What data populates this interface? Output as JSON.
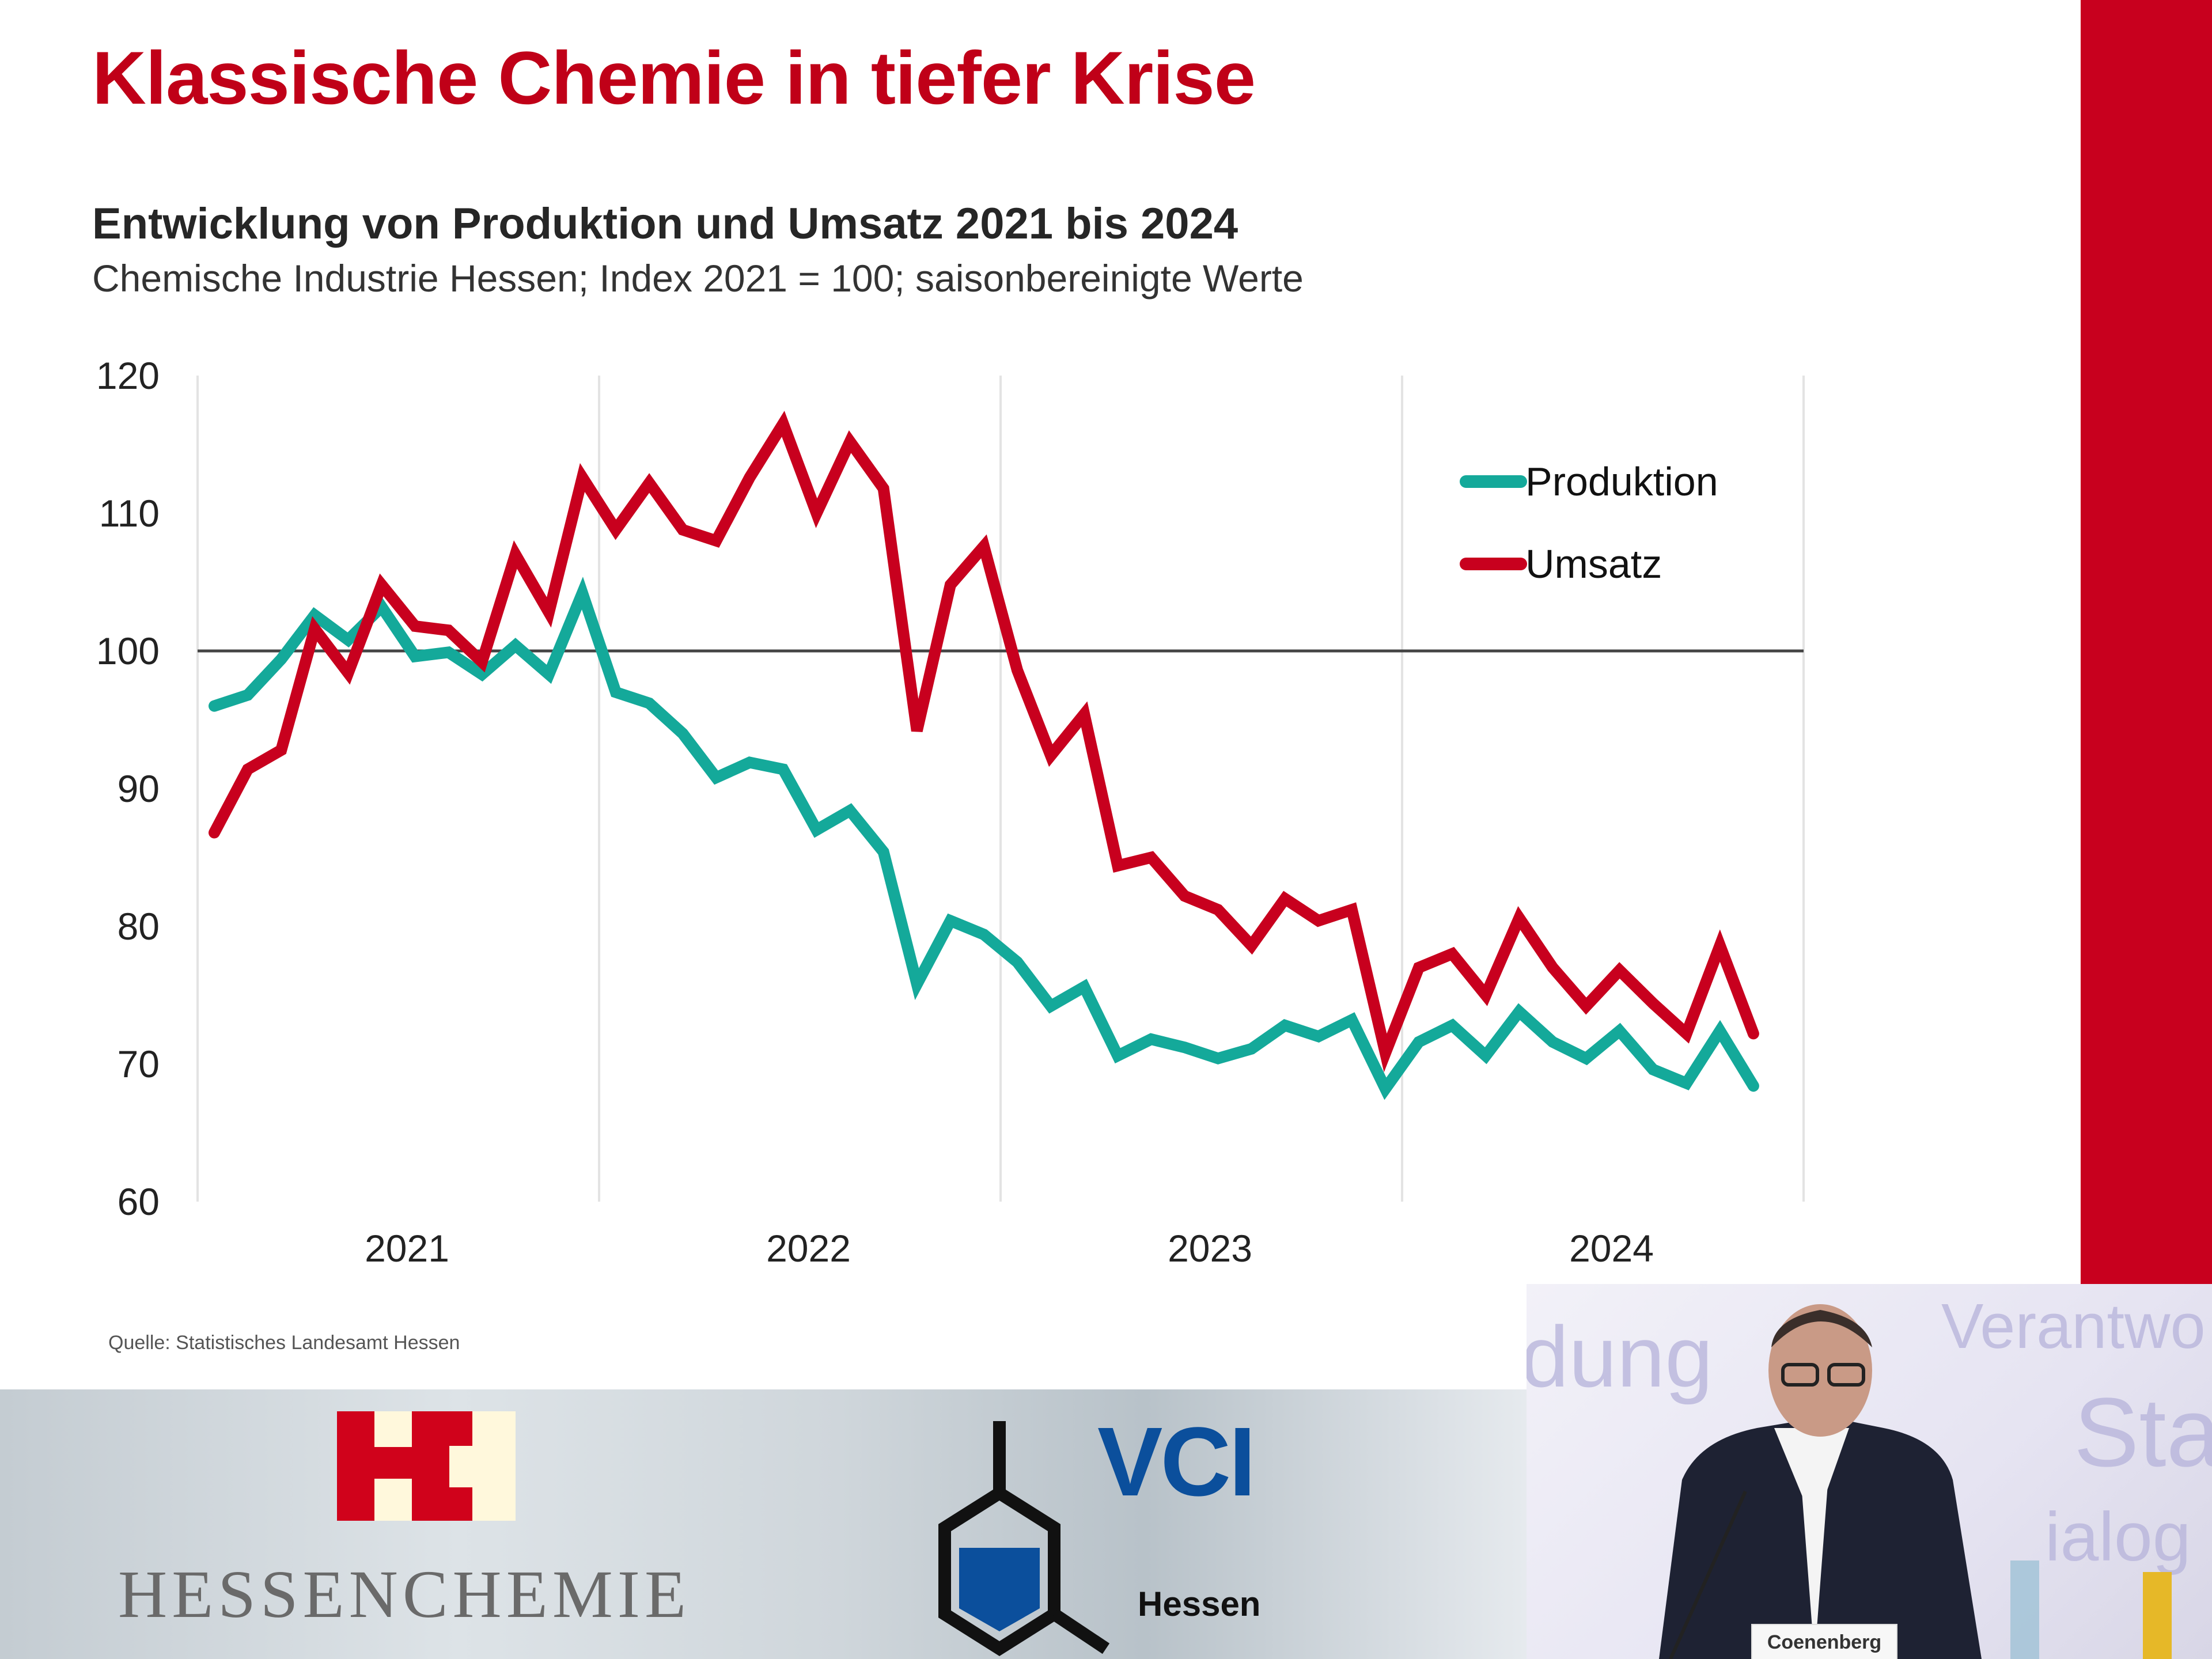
{
  "slide": {
    "title": "Klassische Chemie in tiefer Krise",
    "source": "Quelle: Statistisches Landesamt Hessen",
    "accent_color": "#c00018"
  },
  "chart_data": {
    "type": "line",
    "title": "Entwicklung von Produktion und Umsatz 2021 bis 2024",
    "subtitle": "Chemische Industrie Hessen; Index 2021 = 100; saisonbereinigte Werte",
    "xlabel": "",
    "ylabel": "",
    "ylim": [
      60,
      120
    ],
    "yticks": [
      "60",
      "70",
      "80",
      "90",
      "100",
      "110",
      "120"
    ],
    "xticks": [
      "2021",
      "2022",
      "2023",
      "2024"
    ],
    "x_frequency": "monthly, Jan 2021 – Nov 2024",
    "reference_line": 100,
    "grid": "vertical year separators",
    "legend_position": "top-right",
    "series": [
      {
        "name": "Produktion",
        "color": "#14a99a",
        "values": [
          96,
          96.8,
          99.4,
          102.6,
          100.8,
          103.2,
          99.6,
          99.9,
          98.3,
          100.4,
          98.3,
          104.2,
          97,
          96.2,
          94,
          90.8,
          91.9,
          91.4,
          87,
          88.4,
          85.4,
          75.8,
          80.4,
          79.4,
          77.4,
          74.2,
          75.6,
          70.6,
          71.8,
          71.2,
          70.4,
          71.1,
          72.8,
          72,
          73.2,
          68.2,
          71.6,
          72.8,
          70.6,
          73.8,
          71.6,
          70.4,
          72.4,
          69.6,
          68.6,
          72.4,
          68.4
        ]
      },
      {
        "name": "Umsatz",
        "color": "#c8001e",
        "values": [
          86.8,
          91.4,
          92.8,
          101.6,
          98.4,
          104.8,
          101.8,
          101.5,
          99.2,
          107,
          102.8,
          112.6,
          108.8,
          112.2,
          108.8,
          108,
          112.6,
          116.5,
          110,
          115.2,
          111.8,
          94.2,
          104.8,
          107.6,
          98.6,
          92.4,
          95.4,
          84.4,
          85,
          82.2,
          81.2,
          78.6,
          82,
          80.4,
          81.2,
          70.8,
          77,
          78,
          75,
          80.6,
          77,
          74.2,
          76.8,
          74.4,
          72.2,
          78.6,
          72.2
        ]
      }
    ]
  },
  "logos": {
    "hessenchemie": "HessenChemie",
    "vci": "VCI",
    "vci_region": "Hessen"
  },
  "video": {
    "background_words": [
      "dung",
      "Verantwo",
      "Sta",
      "ialog"
    ],
    "nameplate": "Coenenberg"
  }
}
